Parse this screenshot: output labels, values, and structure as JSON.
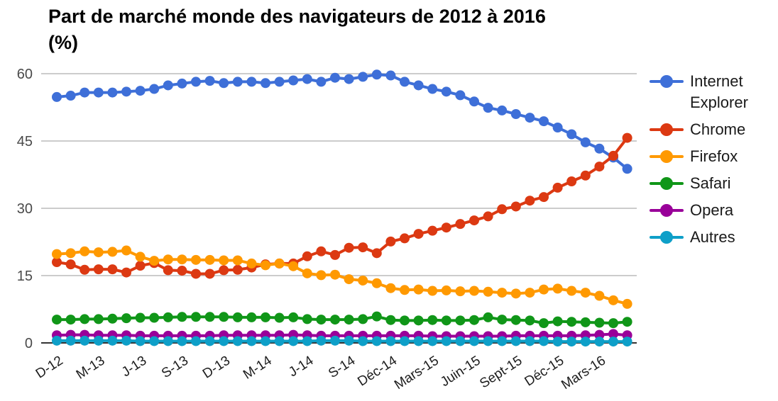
{
  "title_line1": "Part de marché monde des navigateurs de 2012 à 2016",
  "title_line2": "(%)",
  "chart_data": {
    "type": "line",
    "title": "Part de marché monde des navigateurs de 2012 à 2016 (%)",
    "xlabel": "",
    "ylabel": "",
    "ylim": [
      0,
      60
    ],
    "yticks": [
      0,
      15,
      30,
      45,
      60
    ],
    "grid": true,
    "legend_position": "right",
    "n_points": 42,
    "x_tick_labels": [
      "D-12",
      "M-13",
      "J-13",
      "S-13",
      "D-13",
      "M-14",
      "J-14",
      "S-14",
      "Déc-14",
      "Mars-15",
      "Juin-15",
      "Sept-15",
      "Déc-15",
      "Mars-16"
    ],
    "x_tick_indices": [
      0,
      3,
      6,
      9,
      12,
      15,
      18,
      21,
      24,
      27,
      30,
      33,
      36,
      39
    ],
    "series": [
      {
        "id": "internet-explorer",
        "name": "Internet Explorer",
        "color": "#3E6FD8",
        "values": [
          54.8,
          55.1,
          55.8,
          55.8,
          55.8,
          56.0,
          56.2,
          56.6,
          57.4,
          57.8,
          58.2,
          58.4,
          57.9,
          58.2,
          58.2,
          57.9,
          58.2,
          58.5,
          58.8,
          58.2,
          59.1,
          58.8,
          59.3,
          59.8,
          59.6,
          58.2,
          57.4,
          56.6,
          56.0,
          55.2,
          53.8,
          52.4,
          51.8,
          51.0,
          50.2,
          49.4,
          48.0,
          46.5,
          44.7,
          43.3,
          41.3,
          38.8
        ]
      },
      {
        "id": "chrome",
        "name": "Chrome",
        "color": "#DC3912",
        "values": [
          18.0,
          17.5,
          16.3,
          16.4,
          16.4,
          15.7,
          17.2,
          17.8,
          16.2,
          16.1,
          15.4,
          15.4,
          16.2,
          16.3,
          16.8,
          17.5,
          17.7,
          17.7,
          19.3,
          20.4,
          19.6,
          21.2,
          21.3,
          20.0,
          22.6,
          23.3,
          24.3,
          25.0,
          25.7,
          26.5,
          27.3,
          28.2,
          29.8,
          30.4,
          31.7,
          32.5,
          34.6,
          36.0,
          37.3,
          39.3,
          41.7,
          45.7
        ]
      },
      {
        "id": "firefox",
        "name": "Firefox",
        "color": "#FF9900",
        "values": [
          19.8,
          20.0,
          20.4,
          20.2,
          20.3,
          20.6,
          19.2,
          18.3,
          18.6,
          18.6,
          18.5,
          18.5,
          18.4,
          18.4,
          17.7,
          17.3,
          17.7,
          17.1,
          15.5,
          15.1,
          15.2,
          14.2,
          13.9,
          13.3,
          12.2,
          11.8,
          11.9,
          11.6,
          11.7,
          11.5,
          11.6,
          11.4,
          11.2,
          11.0,
          11.2,
          11.9,
          12.1,
          11.6,
          11.2,
          10.5,
          9.5,
          8.7
        ]
      },
      {
        "id": "safari",
        "name": "Safari",
        "color": "#109618",
        "values": [
          5.2,
          5.2,
          5.3,
          5.3,
          5.4,
          5.5,
          5.6,
          5.6,
          5.7,
          5.8,
          5.8,
          5.8,
          5.8,
          5.7,
          5.7,
          5.7,
          5.6,
          5.7,
          5.3,
          5.2,
          5.2,
          5.2,
          5.3,
          5.9,
          5.1,
          5.0,
          5.0,
          5.1,
          5.0,
          5.0,
          5.1,
          5.7,
          5.2,
          5.1,
          5.0,
          4.4,
          4.8,
          4.7,
          4.6,
          4.5,
          4.4,
          4.7
        ]
      },
      {
        "id": "opera",
        "name": "Opera",
        "color": "#990099",
        "values": [
          1.7,
          1.8,
          1.8,
          1.7,
          1.7,
          1.7,
          1.6,
          1.6,
          1.6,
          1.6,
          1.6,
          1.6,
          1.7,
          1.7,
          1.7,
          1.7,
          1.7,
          1.8,
          1.7,
          1.6,
          1.6,
          1.6,
          1.6,
          1.6,
          1.6,
          1.6,
          1.6,
          1.5,
          1.5,
          1.5,
          1.5,
          1.5,
          1.5,
          1.6,
          1.6,
          1.6,
          1.6,
          1.6,
          1.7,
          1.8,
          2.0,
          1.7
        ]
      },
      {
        "id": "autres",
        "name": "Autres",
        "color": "#0E9FC8",
        "values": [
          0.5,
          0.5,
          0.5,
          0.5,
          0.5,
          0.5,
          0.4,
          0.4,
          0.4,
          0.4,
          0.4,
          0.4,
          0.4,
          0.4,
          0.4,
          0.4,
          0.4,
          0.4,
          0.4,
          0.5,
          0.5,
          0.5,
          0.4,
          0.4,
          0.4,
          0.4,
          0.4,
          0.4,
          0.4,
          0.4,
          0.4,
          0.4,
          0.4,
          0.4,
          0.4,
          0.4,
          0.3,
          0.3,
          0.3,
          0.3,
          0.3,
          0.3
        ]
      }
    ]
  }
}
